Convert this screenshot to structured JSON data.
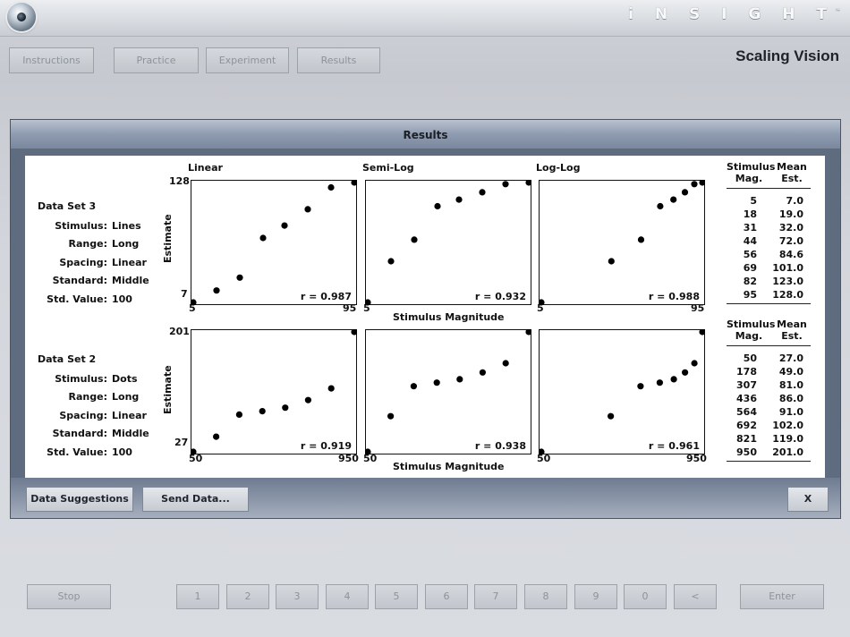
{
  "brand": "i N S I G H T",
  "brand_tm": "™",
  "app_title": "Scaling Vision",
  "nav": [
    {
      "label": "Instructions"
    },
    {
      "label": "Practice"
    },
    {
      "label": "Experiment"
    },
    {
      "label": "Results"
    }
  ],
  "panel": {
    "title": "Results",
    "buttons": {
      "suggestions": "Data Suggestions",
      "send": "Send Data...",
      "close": "X"
    }
  },
  "graph_titles": [
    "Linear",
    "Semi-Log",
    "Log-Log"
  ],
  "axis": {
    "y_label": "Estimate",
    "x_label": "Stimulus Magnitude"
  },
  "datasets": [
    {
      "title": "Data Set 3",
      "fields": [
        {
          "label": "Stimulus:",
          "value": "Lines"
        },
        {
          "label": "Range:",
          "value": "Long"
        },
        {
          "label": "Spacing:",
          "value": "Linear"
        },
        {
          "label": "Standard:",
          "value": "Middle"
        },
        {
          "label": "Std. Value:",
          "value": "100"
        }
      ],
      "y_ticks": [
        "128",
        "7"
      ],
      "x_ticks": [
        "5",
        "95"
      ],
      "r_values": [
        "r = 0.987",
        "r = 0.932",
        "r = 0.988"
      ],
      "table": {
        "head_stim": [
          "Stimulus",
          "Mag."
        ],
        "head_est": [
          "Mean",
          "Est."
        ],
        "rows": [
          [
            "5",
            "7.0"
          ],
          [
            "18",
            "19.0"
          ],
          [
            "31",
            "32.0"
          ],
          [
            "44",
            "72.0"
          ],
          [
            "56",
            "84.6"
          ],
          [
            "69",
            "101.0"
          ],
          [
            "82",
            "123.0"
          ],
          [
            "95",
            "128.0"
          ]
        ]
      }
    },
    {
      "title": "Data Set 2",
      "fields": [
        {
          "label": "Stimulus:",
          "value": "Dots"
        },
        {
          "label": "Range:",
          "value": "Long"
        },
        {
          "label": "Spacing:",
          "value": "Linear"
        },
        {
          "label": "Standard:",
          "value": "Middle"
        },
        {
          "label": "Std. Value:",
          "value": "100"
        }
      ],
      "y_ticks": [
        "201",
        "27"
      ],
      "x_ticks": [
        "50",
        "950"
      ],
      "r_values": [
        "r = 0.919",
        "r = 0.938",
        "r = 0.961"
      ],
      "table": {
        "head_stim": [
          "Stimulus",
          "Mag."
        ],
        "head_est": [
          "Mean",
          "Est."
        ],
        "rows": [
          [
            "50",
            "27.0"
          ],
          [
            "178",
            "49.0"
          ],
          [
            "307",
            "81.0"
          ],
          [
            "436",
            "86.0"
          ],
          [
            "564",
            "91.0"
          ],
          [
            "692",
            "102.0"
          ],
          [
            "821",
            "119.0"
          ],
          [
            "950",
            "201.0"
          ]
        ]
      }
    }
  ],
  "chart_data": [
    {
      "type": "scatter",
      "scale": "linear",
      "x": [
        5,
        18,
        31,
        44,
        56,
        69,
        82,
        95
      ],
      "y": [
        7,
        19,
        32,
        72,
        84.6,
        101,
        123,
        128
      ],
      "xlim": [
        5,
        95
      ],
      "ylim": [
        7,
        128
      ]
    },
    {
      "type": "scatter",
      "scale": "semilog",
      "x": [
        5,
        18,
        31,
        44,
        56,
        69,
        82,
        95
      ],
      "y": [
        7,
        19,
        32,
        72,
        84.6,
        101,
        123,
        128
      ],
      "xlim": [
        5,
        95
      ],
      "ylim": [
        7,
        128
      ]
    },
    {
      "type": "scatter",
      "scale": "loglog",
      "x": [
        5,
        18,
        31,
        44,
        56,
        69,
        82,
        95
      ],
      "y": [
        7,
        19,
        32,
        72,
        84.6,
        101,
        123,
        128
      ],
      "xlim": [
        5,
        95
      ],
      "ylim": [
        7,
        128
      ]
    },
    {
      "type": "scatter",
      "scale": "linear",
      "x": [
        50,
        178,
        307,
        436,
        564,
        692,
        821,
        950
      ],
      "y": [
        27,
        49,
        81,
        86,
        91,
        102,
        119,
        201
      ],
      "xlim": [
        50,
        950
      ],
      "ylim": [
        27,
        201
      ]
    },
    {
      "type": "scatter",
      "scale": "semilog",
      "x": [
        50,
        178,
        307,
        436,
        564,
        692,
        821,
        950
      ],
      "y": [
        27,
        49,
        81,
        86,
        91,
        102,
        119,
        201
      ],
      "xlim": [
        50,
        950
      ],
      "ylim": [
        27,
        201
      ]
    },
    {
      "type": "scatter",
      "scale": "loglog",
      "x": [
        50,
        178,
        307,
        436,
        564,
        692,
        821,
        950
      ],
      "y": [
        27,
        49,
        81,
        86,
        91,
        102,
        119,
        201
      ],
      "xlim": [
        50,
        950
      ],
      "ylim": [
        27,
        201
      ]
    }
  ],
  "keypad": [
    {
      "label": "Stop"
    },
    {
      "label": "1"
    },
    {
      "label": "2"
    },
    {
      "label": "3"
    },
    {
      "label": "4"
    },
    {
      "label": "5"
    },
    {
      "label": "6"
    },
    {
      "label": "7"
    },
    {
      "label": "8"
    },
    {
      "label": "9"
    },
    {
      "label": "0"
    },
    {
      "label": "<"
    },
    {
      "label": "Enter"
    }
  ]
}
